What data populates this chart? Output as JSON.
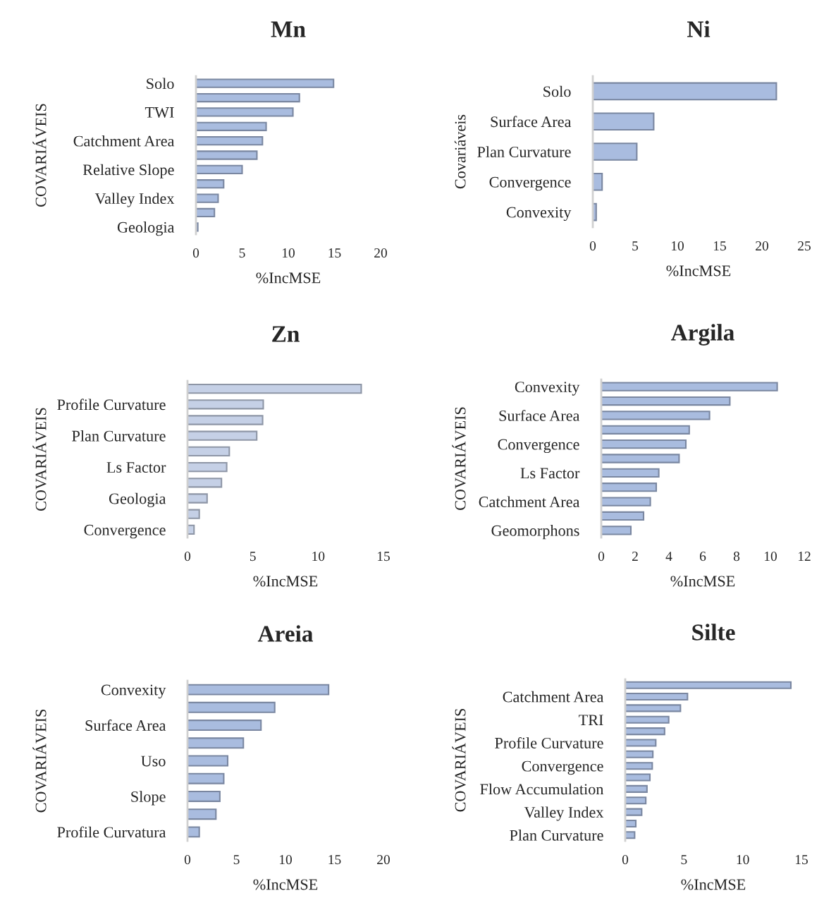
{
  "chart_data": [
    {
      "type": "bar",
      "orientation": "horizontal",
      "title": "Mn",
      "xlabel": "%IncMSE",
      "ylabel": "COVARIÁVEIS",
      "color": "#a9bcdf",
      "categories": [
        "Solo",
        null,
        "TWI",
        null,
        "Catchment Area",
        null,
        "Relative Slope",
        null,
        "Valley Index",
        null,
        "Geologia"
      ],
      "values": [
        14.9,
        11.2,
        10.5,
        7.6,
        7.2,
        6.6,
        5.0,
        3.0,
        2.4,
        2.0,
        0.2
      ],
      "xlim": [
        0,
        20
      ],
      "xticks": [
        0,
        5,
        10,
        15,
        20
      ]
    },
    {
      "type": "bar",
      "orientation": "horizontal",
      "title": "Ni",
      "xlabel": "%IncMSE",
      "ylabel": "Covariáveis",
      "color": "#a9bcdf",
      "categories": [
        "Solo",
        "Surface Area",
        "Plan Curvature",
        "Convergence",
        "Convexity"
      ],
      "values": [
        21.7,
        7.2,
        5.2,
        1.1,
        0.4
      ],
      "xlim": [
        0,
        25
      ],
      "xticks": [
        0,
        5,
        10,
        15,
        20,
        25
      ]
    },
    {
      "type": "bar",
      "orientation": "horizontal",
      "title": "Zn",
      "xlabel": "%IncMSE",
      "ylabel": "COVARIÁVEIS",
      "color": "#c5d0e6",
      "categories": [
        null,
        "Profile Curvature",
        null,
        "Plan Curvature",
        null,
        "Ls Factor",
        null,
        "Geologia",
        null,
        "Convergence"
      ],
      "values": [
        13.3,
        5.8,
        5.75,
        5.3,
        3.2,
        3.0,
        2.6,
        1.5,
        0.9,
        0.5
      ],
      "xlim": [
        0,
        15
      ],
      "xticks": [
        0,
        5,
        10,
        15
      ]
    },
    {
      "type": "bar",
      "orientation": "horizontal",
      "title": "Argila",
      "xlabel": "%IncMSE",
      "ylabel": "COVARIÁVEIS",
      "color": "#a9bcdf",
      "categories": [
        "Convexity",
        null,
        "Surface Area",
        null,
        "Convergence",
        null,
        "Ls Factor",
        null,
        "Catchment Area",
        null,
        "Geomorphons"
      ],
      "values": [
        10.4,
        7.6,
        6.4,
        5.2,
        5.0,
        4.6,
        3.4,
        3.25,
        2.9,
        2.5,
        1.75
      ],
      "xlim": [
        0,
        12
      ],
      "xticks": [
        0,
        2,
        4,
        6,
        8,
        10,
        12
      ]
    },
    {
      "type": "bar",
      "orientation": "horizontal",
      "title": "Areia",
      "xlabel": "%IncMSE",
      "ylabel": "COVARIÁVEIS",
      "color": "#a9bcdf",
      "categories": [
        "Convexity",
        null,
        "Surface Area",
        null,
        "Uso",
        null,
        "Slope",
        null,
        "Profile Curvatura"
      ],
      "values": [
        14.4,
        8.9,
        7.5,
        5.7,
        4.1,
        3.7,
        3.3,
        2.9,
        1.2
      ],
      "xlim": [
        0,
        20
      ],
      "xticks": [
        0,
        5,
        10,
        15,
        20
      ]
    },
    {
      "type": "bar",
      "orientation": "horizontal",
      "title": "Silte",
      "xlabel": "%IncMSE",
      "ylabel": "COVARIÁVEIS",
      "color": "#a9bcdf",
      "categories": [
        null,
        "Catchment Area",
        null,
        "TRI",
        null,
        "Profile Curvature",
        null,
        "Convergence",
        null,
        "Flow Accumulation",
        null,
        "Valley Index",
        null,
        "Plan Curvature"
      ],
      "values": [
        14.1,
        5.3,
        4.7,
        3.7,
        3.35,
        2.6,
        2.35,
        2.3,
        2.1,
        1.85,
        1.75,
        1.4,
        0.9,
        0.8
      ],
      "xlim": [
        0,
        15
      ],
      "xticks": [
        0,
        5,
        10,
        15
      ]
    }
  ]
}
